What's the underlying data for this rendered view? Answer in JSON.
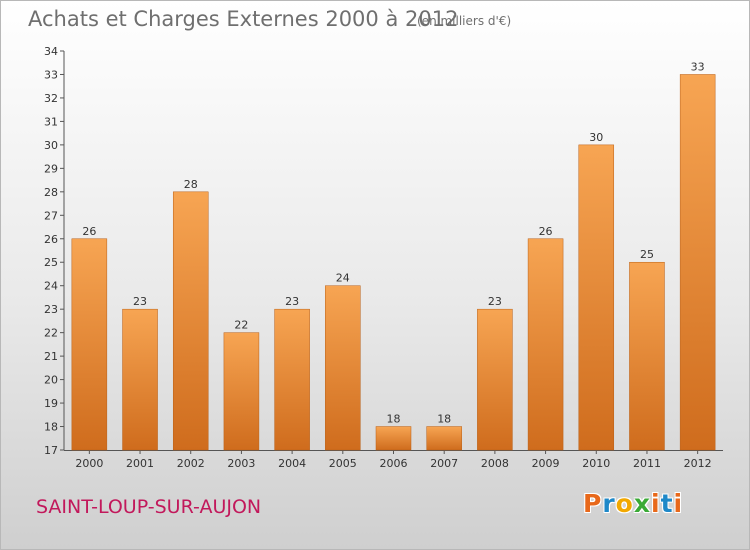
{
  "header": {
    "title": "Achats et Charges Externes 2000 à 2012",
    "subtitle": "(en milliers d'€)"
  },
  "footer": {
    "place": "SAINT-LOUP-SUR-AUJON",
    "logo_text": "Proxiti",
    "logo_colors": [
      "#e8681a",
      "#1e88c8",
      "#f2a800",
      "#3aaa35",
      "#e8681a",
      "#1e88c8",
      "#e8681a"
    ]
  },
  "chart_data": {
    "type": "bar",
    "categories": [
      "2000",
      "2001",
      "2002",
      "2003",
      "2004",
      "2005",
      "2006",
      "2007",
      "2008",
      "2009",
      "2010",
      "2011",
      "2012"
    ],
    "values": [
      26,
      23,
      28,
      22,
      23,
      24,
      18,
      18,
      23,
      26,
      30,
      25,
      33
    ],
    "data_labels": [
      "26",
      "23",
      "28",
      "22",
      "23",
      "24",
      "18",
      "18",
      "23",
      "26",
      "30",
      "25",
      "33"
    ],
    "ylim": [
      17,
      34
    ],
    "yticks": [
      17,
      18,
      19,
      20,
      21,
      22,
      23,
      24,
      25,
      26,
      27,
      28,
      29,
      30,
      31,
      32,
      33,
      34
    ],
    "grid": false,
    "bar_color_top": "#f7a553",
    "bar_color_bottom": "#cf6c1d"
  }
}
